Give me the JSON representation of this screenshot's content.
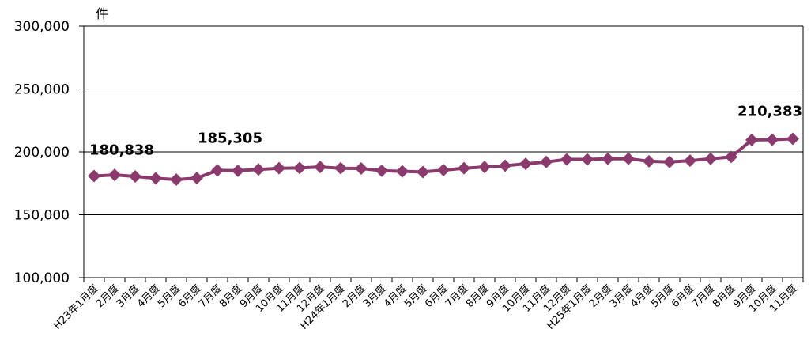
{
  "chart_data": {
    "type": "line",
    "unit_label": "件",
    "ylim": [
      100000,
      300000
    ],
    "yticks": [
      100000,
      150000,
      200000,
      250000,
      300000
    ],
    "ytick_labels": [
      "100,000",
      "150,000",
      "200,000",
      "250,000",
      "300,000"
    ],
    "grid": true,
    "line_color": "#8b3a6e",
    "categories": [
      "H23年1月度",
      "2月度",
      "3月度",
      "4月度",
      "5月度",
      "6月度",
      "7月度",
      "8月度",
      "9月度",
      "10月度",
      "11月度",
      "12月度",
      "H24年1月度",
      "2月度",
      "3月度",
      "4月度",
      "5月度",
      "6月度",
      "7月度",
      "8月度",
      "9月度",
      "10月度",
      "11月度",
      "12月度",
      "H25年1月度",
      "2月度",
      "3月度",
      "4月度",
      "5月度",
      "6月度",
      "7月度",
      "8月度",
      "9月度",
      "10月度",
      "11月度"
    ],
    "values": [
      180838,
      181700,
      180500,
      179000,
      178000,
      179200,
      185305,
      185000,
      186000,
      187000,
      187200,
      188000,
      187000,
      186800,
      185000,
      184500,
      184000,
      185500,
      187000,
      188000,
      189000,
      190500,
      192000,
      194000,
      194000,
      194500,
      194600,
      192500,
      192000,
      193000,
      194500,
      196000,
      209500,
      209700,
      210383
    ],
    "data_labels": [
      {
        "index": 0,
        "text": "180,838"
      },
      {
        "index": 6,
        "text": "185,305"
      },
      {
        "index": 34,
        "text": "210,383"
      }
    ]
  }
}
